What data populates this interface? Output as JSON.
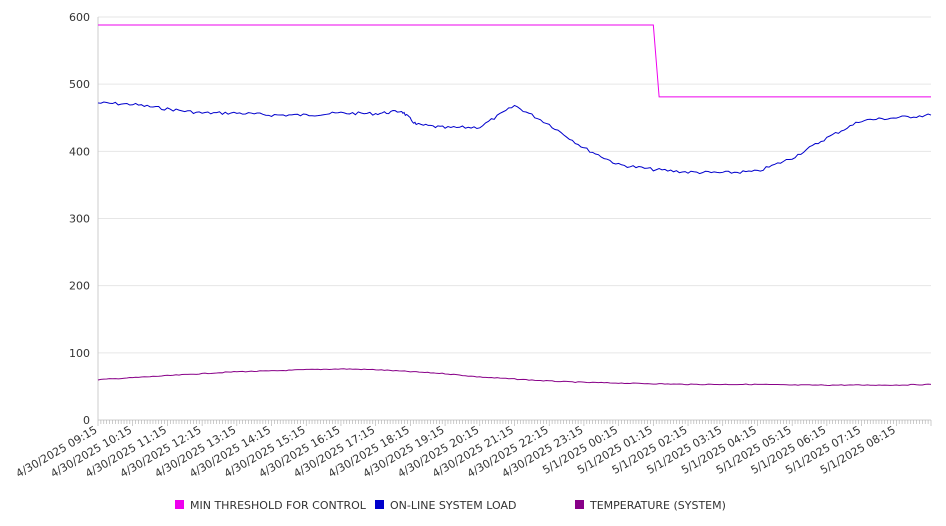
{
  "chart_data": {
    "type": "line",
    "title": "",
    "xlabel": "",
    "ylabel": "",
    "ylim": [
      0,
      600
    ],
    "yticks": [
      0,
      100,
      200,
      300,
      400,
      500,
      600
    ],
    "grid": "horizontal",
    "legend_position": "bottom",
    "x_tick_labels": [
      "4/30/2025 09:15",
      "4/30/2025 10:15",
      "4/30/2025 11:15",
      "4/30/2025 12:15",
      "4/30/2025 13:15",
      "4/30/2025 14:15",
      "4/30/2025 15:15",
      "4/30/2025 16:15",
      "4/30/2025 17:15",
      "4/30/2025 18:15",
      "4/30/2025 19:15",
      "4/30/2025 20:15",
      "4/30/2025 21:15",
      "4/30/2025 22:15",
      "4/30/2025 23:15",
      "5/1/2025 00:15",
      "5/1/2025 01:15",
      "5/1/2025 02:15",
      "5/1/2025 03:15",
      "5/1/2025 04:15",
      "5/1/2025 05:15",
      "5/1/2025 06:15",
      "5/1/2025 07:15",
      "5/1/2025 08:15"
    ],
    "series": [
      {
        "name": "MIN THRESHOLD FOR CONTROL",
        "color": "#ee00ee",
        "points": [
          [
            "4/30/2025 09:15",
            588
          ],
          [
            "5/1/2025 01:15",
            588
          ],
          [
            "5/1/2025 01:25",
            481
          ],
          [
            "5/1/2025 08:15",
            481
          ],
          [
            "5/1/2025 09:15",
            481
          ]
        ]
      },
      {
        "name": "ON-LINE SYSTEM LOAD",
        "color": "#0000cc",
        "points": [
          [
            "4/30/2025 09:15",
            472
          ],
          [
            "4/30/2025 10:15",
            470
          ],
          [
            "4/30/2025 11:15",
            463
          ],
          [
            "4/30/2025 12:15",
            457
          ],
          [
            "4/30/2025 13:15",
            457
          ],
          [
            "4/30/2025 14:15",
            454
          ],
          [
            "4/30/2025 15:15",
            454
          ],
          [
            "4/30/2025 16:15",
            457
          ],
          [
            "4/30/2025 17:15",
            456
          ],
          [
            "4/30/2025 18:00",
            460
          ],
          [
            "4/30/2025 18:25",
            440
          ],
          [
            "4/30/2025 19:15",
            435
          ],
          [
            "4/30/2025 20:15",
            436
          ],
          [
            "4/30/2025 21:15",
            468
          ],
          [
            "4/30/2025 22:15",
            440
          ],
          [
            "4/30/2025 23:15",
            405
          ],
          [
            "5/1/2025 00:15",
            380
          ],
          [
            "5/1/2025 01:15",
            373
          ],
          [
            "5/1/2025 02:15",
            369
          ],
          [
            "5/1/2025 03:15",
            368
          ],
          [
            "5/1/2025 04:15",
            370
          ],
          [
            "5/1/2025 05:15",
            390
          ],
          [
            "5/1/2025 06:15",
            420
          ],
          [
            "5/1/2025 07:15",
            446
          ],
          [
            "5/1/2025 08:15",
            450
          ],
          [
            "5/1/2025 09:15",
            454
          ]
        ]
      },
      {
        "name": "TEMPERATURE (SYSTEM)",
        "color": "#880088",
        "points": [
          [
            "4/30/2025 09:15",
            60
          ],
          [
            "4/30/2025 10:15",
            63
          ],
          [
            "4/30/2025 11:15",
            66
          ],
          [
            "4/30/2025 12:15",
            69
          ],
          [
            "4/30/2025 13:15",
            72
          ],
          [
            "4/30/2025 14:15",
            73
          ],
          [
            "4/30/2025 15:15",
            75
          ],
          [
            "4/30/2025 16:15",
            76
          ],
          [
            "4/30/2025 17:15",
            75
          ],
          [
            "4/30/2025 18:15",
            72
          ],
          [
            "4/30/2025 19:15",
            69
          ],
          [
            "4/30/2025 20:15",
            64
          ],
          [
            "4/30/2025 21:15",
            61
          ],
          [
            "4/30/2025 22:15",
            58
          ],
          [
            "4/30/2025 23:15",
            56
          ],
          [
            "5/1/2025 00:15",
            55
          ],
          [
            "5/1/2025 01:15",
            54
          ],
          [
            "5/1/2025 02:15",
            53
          ],
          [
            "5/1/2025 03:15",
            53
          ],
          [
            "5/1/2025 04:15",
            53
          ],
          [
            "5/1/2025 05:15",
            52
          ],
          [
            "5/1/2025 06:15",
            52
          ],
          [
            "5/1/2025 07:15",
            52
          ],
          [
            "5/1/2025 08:15",
            52
          ],
          [
            "5/1/2025 09:15",
            53
          ]
        ]
      }
    ]
  }
}
